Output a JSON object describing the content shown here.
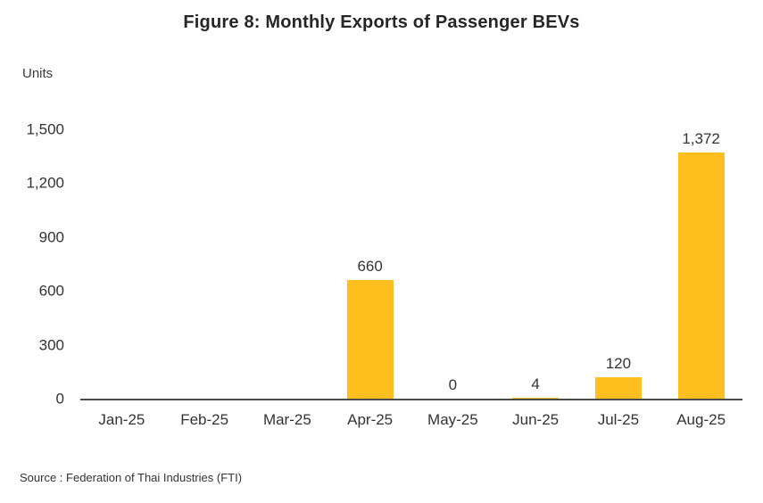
{
  "title": "Figure 8: Monthly Exports of Passenger BEVs",
  "source": "Source : Federation of Thai Industries (FTI)",
  "colors": {
    "bar": "#FDBE1E",
    "axis_line": "#4a4a4a",
    "text": "#333333",
    "title_text": "#262626"
  },
  "chart_data": {
    "type": "bar",
    "title": "Figure 8: Monthly Exports of Passenger BEVs",
    "xlabel": "",
    "ylabel": "Units",
    "categories": [
      "Jan-25",
      "Feb-25",
      "Mar-25",
      "Apr-25",
      "May-25",
      "Jun-25",
      "Jul-25",
      "Aug-25"
    ],
    "values": [
      null,
      null,
      null,
      660,
      0,
      4,
      120,
      1372
    ],
    "data_labels": [
      "",
      "",
      "",
      "660",
      "0",
      "4",
      "120",
      "1,372"
    ],
    "yticks": [
      0,
      300,
      600,
      900,
      1200,
      1500
    ],
    "ytick_labels": [
      "0",
      "300",
      "600",
      "900",
      "1,200",
      "1,500"
    ],
    "ylim": [
      0,
      1500
    ],
    "grid": false,
    "legend": false,
    "bar_color": "#FDBE1E"
  }
}
